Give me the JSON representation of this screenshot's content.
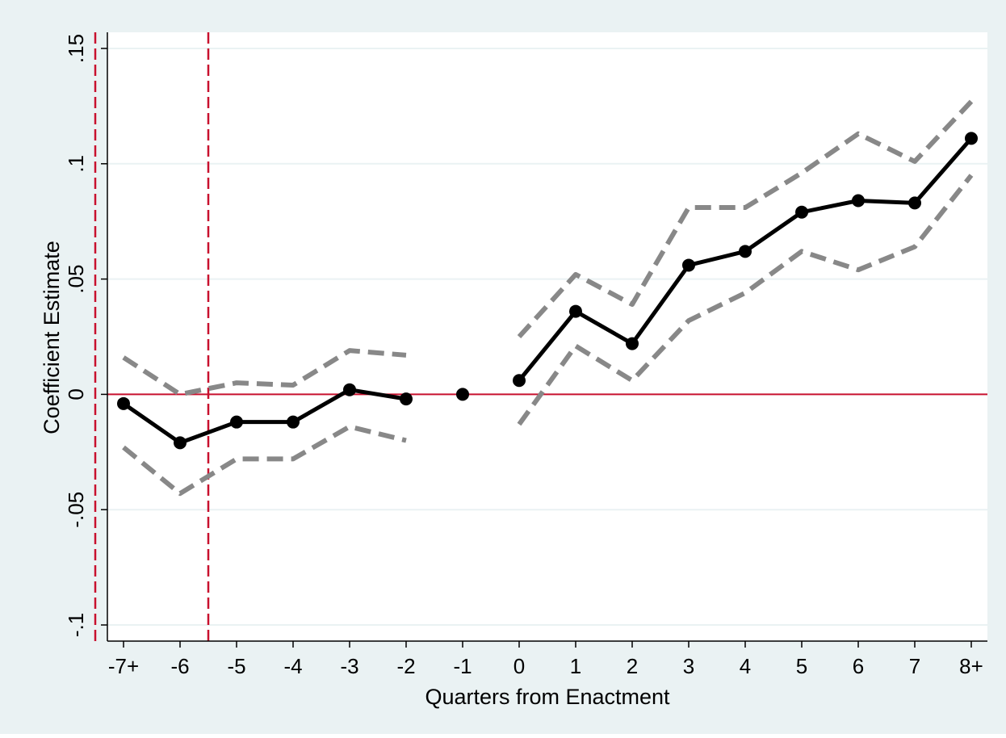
{
  "colors": {
    "outer_background": "#eaf2f3",
    "plot_background": "#ffffff",
    "estimate_line": "#000000",
    "confidence_band": "#888888",
    "reference_line": "#c8102e",
    "grid": "#eaf2f3"
  },
  "chart_data": {
    "type": "line",
    "title": "",
    "xlabel": "Quarters from Enactment",
    "ylabel": "Coefficient Estimate",
    "grid": true,
    "legend": "none",
    "x_tick_labels": [
      "-7+",
      "-6",
      "-5",
      "-4",
      "-3",
      "-2",
      "-1",
      "0",
      "1",
      "2",
      "3",
      "4",
      "5",
      "6",
      "7",
      "8+"
    ],
    "y_tick_labels": [
      "-.1",
      "-.05",
      "0",
      ".05",
      ".1",
      ".15"
    ],
    "y_ticks": [
      -0.1,
      -0.05,
      0,
      0.05,
      0.1,
      0.15
    ],
    "ylim": [
      -0.107,
      0.157
    ],
    "series": [
      {
        "role": "estimate",
        "style": "solid-with-markers",
        "values": [
          -0.004,
          -0.021,
          -0.012,
          -0.012,
          0.002,
          -0.002,
          0.0,
          0.006,
          0.036,
          0.022,
          0.056,
          0.062,
          0.079,
          0.084,
          0.083,
          0.111
        ]
      },
      {
        "role": "upper-ci",
        "style": "dashed",
        "values": [
          0.016,
          0.0,
          0.005,
          0.004,
          0.019,
          0.017,
          null,
          0.025,
          0.052,
          0.039,
          0.081,
          0.081,
          0.096,
          0.113,
          0.101,
          0.127
        ]
      },
      {
        "role": "lower-ci",
        "style": "dashed",
        "values": [
          -0.023,
          -0.043,
          -0.028,
          -0.028,
          -0.014,
          -0.02,
          null,
          -0.013,
          0.021,
          0.006,
          0.032,
          0.044,
          0.062,
          0.054,
          0.064,
          0.095
        ]
      }
    ],
    "reference_lines": [
      {
        "axis": "y",
        "value": 0,
        "style": "solid"
      },
      {
        "axis": "x",
        "value": -0.5,
        "style": "dashed"
      },
      {
        "axis": "x",
        "value": 1.5,
        "style": "dashed"
      }
    ]
  }
}
